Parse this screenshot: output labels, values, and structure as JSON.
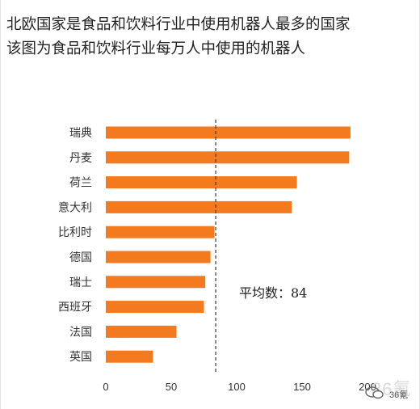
{
  "header": {
    "title": "北欧国家是食品和饮料行业中使用机器人最多的国家",
    "subtitle": "该图为食品和饮料行业每万人中使用的机器人"
  },
  "watermark": {
    "text": "36氪",
    "big": "36氪"
  },
  "colors": {
    "bar": "#f47a20",
    "average_line": "#444444",
    "axis_text": "#333333"
  },
  "chart_data": {
    "type": "bar",
    "orientation": "horizontal",
    "categories": [
      "瑞典",
      "丹麦",
      "荷兰",
      "意大利",
      "比利时",
      "德国",
      "瑞士",
      "西班牙",
      "法国",
      "英国"
    ],
    "values": [
      187,
      186,
      146,
      142,
      83,
      80,
      76,
      75,
      54,
      36
    ],
    "xlim": [
      0,
      200
    ],
    "xticks": [
      0,
      50,
      100,
      150,
      200
    ],
    "grid": false,
    "average": {
      "value": 84,
      "label": "平均数：84"
    }
  }
}
